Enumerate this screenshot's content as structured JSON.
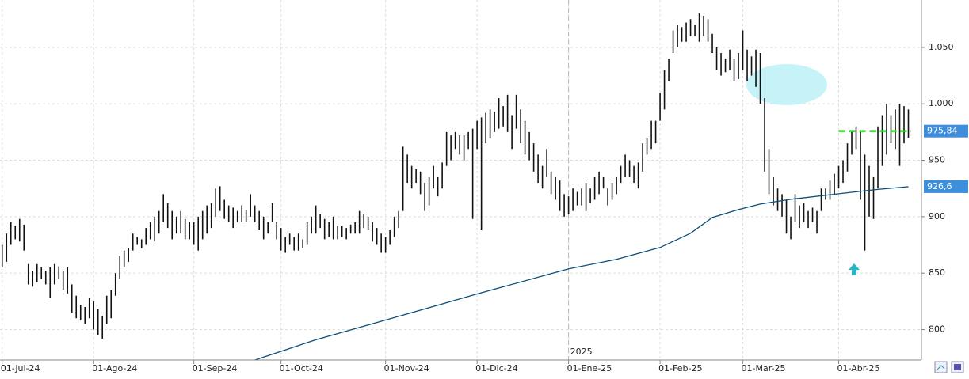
{
  "chart_data": {
    "type": "ohlc",
    "xlim": [
      -0.5,
      211
    ],
    "ylim": [
      773,
      1092
    ],
    "yticks": [
      800,
      850,
      900,
      950,
      {
        "value": 1000,
        "label": "1.000"
      },
      {
        "value": 1050,
        "label": "1.050"
      }
    ],
    "xticks": [
      {
        "value": 0,
        "label": "01-Jul-24"
      },
      {
        "value": 21,
        "label": "01-Ago-24"
      },
      {
        "value": 44,
        "label": "01-Sep-24"
      },
      {
        "value": 64,
        "label": "01-Oct-24"
      },
      {
        "value": 88,
        "label": "01-Nov-24"
      },
      {
        "value": 109,
        "label": "01-Dic-24"
      },
      {
        "value": 130,
        "label": "01-Ene-25"
      },
      {
        "value": 151,
        "label": "01-Feb-25"
      },
      {
        "value": 170,
        "label": "01-Mar-25"
      },
      {
        "value": 192,
        "label": "01-Abr-25"
      }
    ],
    "grid": true,
    "bar_color": "#111111",
    "high": [
      875,
      885,
      895,
      892,
      898,
      893,
      858,
      852,
      858,
      855,
      852,
      855,
      858,
      856,
      852,
      855,
      840,
      830,
      822,
      820,
      828,
      825,
      818,
      812,
      830,
      835,
      850,
      865,
      870,
      872,
      885,
      882,
      880,
      890,
      895,
      900,
      905,
      920,
      912,
      905,
      900,
      905,
      898,
      895,
      895,
      900,
      905,
      910,
      912,
      925,
      927,
      915,
      910,
      908,
      905,
      910,
      906,
      920,
      910,
      905,
      900,
      895,
      912,
      895,
      890,
      882,
      885,
      882,
      885,
      880,
      895,
      900,
      910,
      902,
      898,
      895,
      900,
      892,
      892,
      890,
      893,
      895,
      905,
      902,
      900,
      895,
      890,
      885,
      882,
      888,
      900,
      905,
      962,
      955,
      945,
      942,
      940,
      930,
      935,
      945,
      935,
      948,
      975,
      972,
      975,
      972,
      972,
      975,
      978,
      985,
      988,
      992,
      995,
      993,
      1005,
      998,
      1008,
      990,
      1008,
      995,
      985,
      975,
      965,
      955,
      945,
      960,
      940,
      935,
      932,
      920,
      918,
      925,
      922,
      925,
      930,
      925,
      935,
      940,
      935,
      925,
      930,
      935,
      945,
      955,
      950,
      945,
      948,
      965,
      970,
      985,
      985,
      1010,
      1030,
      1040,
      1065,
      1070,
      1068,
      1072,
      1075,
      1070,
      1080,
      1078,
      1075,
      1062,
      1050,
      1045,
      1040,
      1048,
      1040,
      1045,
      1065,
      1048,
      1042,
      1048,
      1045,
      1005,
      960,
      935,
      925,
      920,
      915,
      900,
      920,
      910,
      912,
      905,
      908,
      905,
      925,
      925,
      932,
      938,
      945,
      950,
      965,
      975,
      980,
      975,
      955,
      945,
      935,
      980,
      990,
      1000,
      990,
      995,
      1000,
      998,
      995
    ],
    "low": [
      855,
      860,
      875,
      880,
      878,
      870,
      840,
      838,
      842,
      845,
      840,
      828,
      840,
      845,
      835,
      832,
      815,
      810,
      808,
      805,
      810,
      800,
      795,
      792,
      805,
      810,
      830,
      845,
      855,
      860,
      870,
      875,
      872,
      875,
      880,
      878,
      885,
      895,
      890,
      880,
      885,
      885,
      880,
      880,
      875,
      870,
      880,
      885,
      890,
      900,
      905,
      898,
      895,
      890,
      895,
      895,
      895,
      900,
      895,
      888,
      880,
      885,
      895,
      880,
      870,
      868,
      875,
      870,
      870,
      872,
      875,
      885,
      885,
      890,
      880,
      882,
      880,
      880,
      882,
      880,
      885,
      885,
      885,
      890,
      888,
      878,
      875,
      868,
      868,
      875,
      882,
      890,
      905,
      930,
      925,
      930,
      920,
      905,
      910,
      925,
      918,
      925,
      945,
      950,
      960,
      955,
      950,
      960,
      898,
      960,
      888,
      965,
      970,
      975,
      978,
      980,
      975,
      960,
      978,
      965,
      955,
      950,
      940,
      930,
      925,
      935,
      920,
      915,
      905,
      900,
      902,
      905,
      910,
      910,
      905,
      912,
      915,
      920,
      925,
      910,
      915,
      920,
      930,
      935,
      935,
      930,
      925,
      940,
      955,
      960,
      965,
      985,
      995,
      1020,
      1045,
      1050,
      1055,
      1055,
      1060,
      1060,
      1055,
      1060,
      1055,
      1045,
      1030,
      1025,
      1028,
      1030,
      1020,
      1022,
      1030,
      1020,
      1025,
      1015,
      1000,
      940,
      920,
      910,
      905,
      900,
      885,
      880,
      895,
      890,
      895,
      890,
      895,
      885,
      905,
      915,
      915,
      920,
      925,
      930,
      940,
      955,
      960,
      915,
      870,
      900,
      898,
      925,
      945,
      955,
      965,
      960,
      945,
      965,
      970
    ],
    "moving_average": {
      "color": "#0b4f7a",
      "x": [
        58,
        72,
        88,
        109,
        130,
        141,
        151,
        158,
        163,
        169,
        174,
        181,
        192,
        200,
        208
      ],
      "values": [
        773,
        791,
        808.4,
        831.5,
        853.8,
        862.2,
        872.7,
        885.3,
        899.3,
        906.3,
        911.2,
        915.4,
        920.3,
        923.8,
        926.6
      ]
    },
    "price_tags": [
      {
        "value": 975.84,
        "label": "975,84",
        "color": "#3d8fdc"
      },
      {
        "value": 926.6,
        "label": "926,6",
        "color": "#3d8fdc"
      }
    ],
    "reference_line": {
      "value": 975.84,
      "from": 192,
      "color": "#22dd22"
    },
    "year_marker": {
      "x": 130,
      "label": "2025"
    }
  }
}
